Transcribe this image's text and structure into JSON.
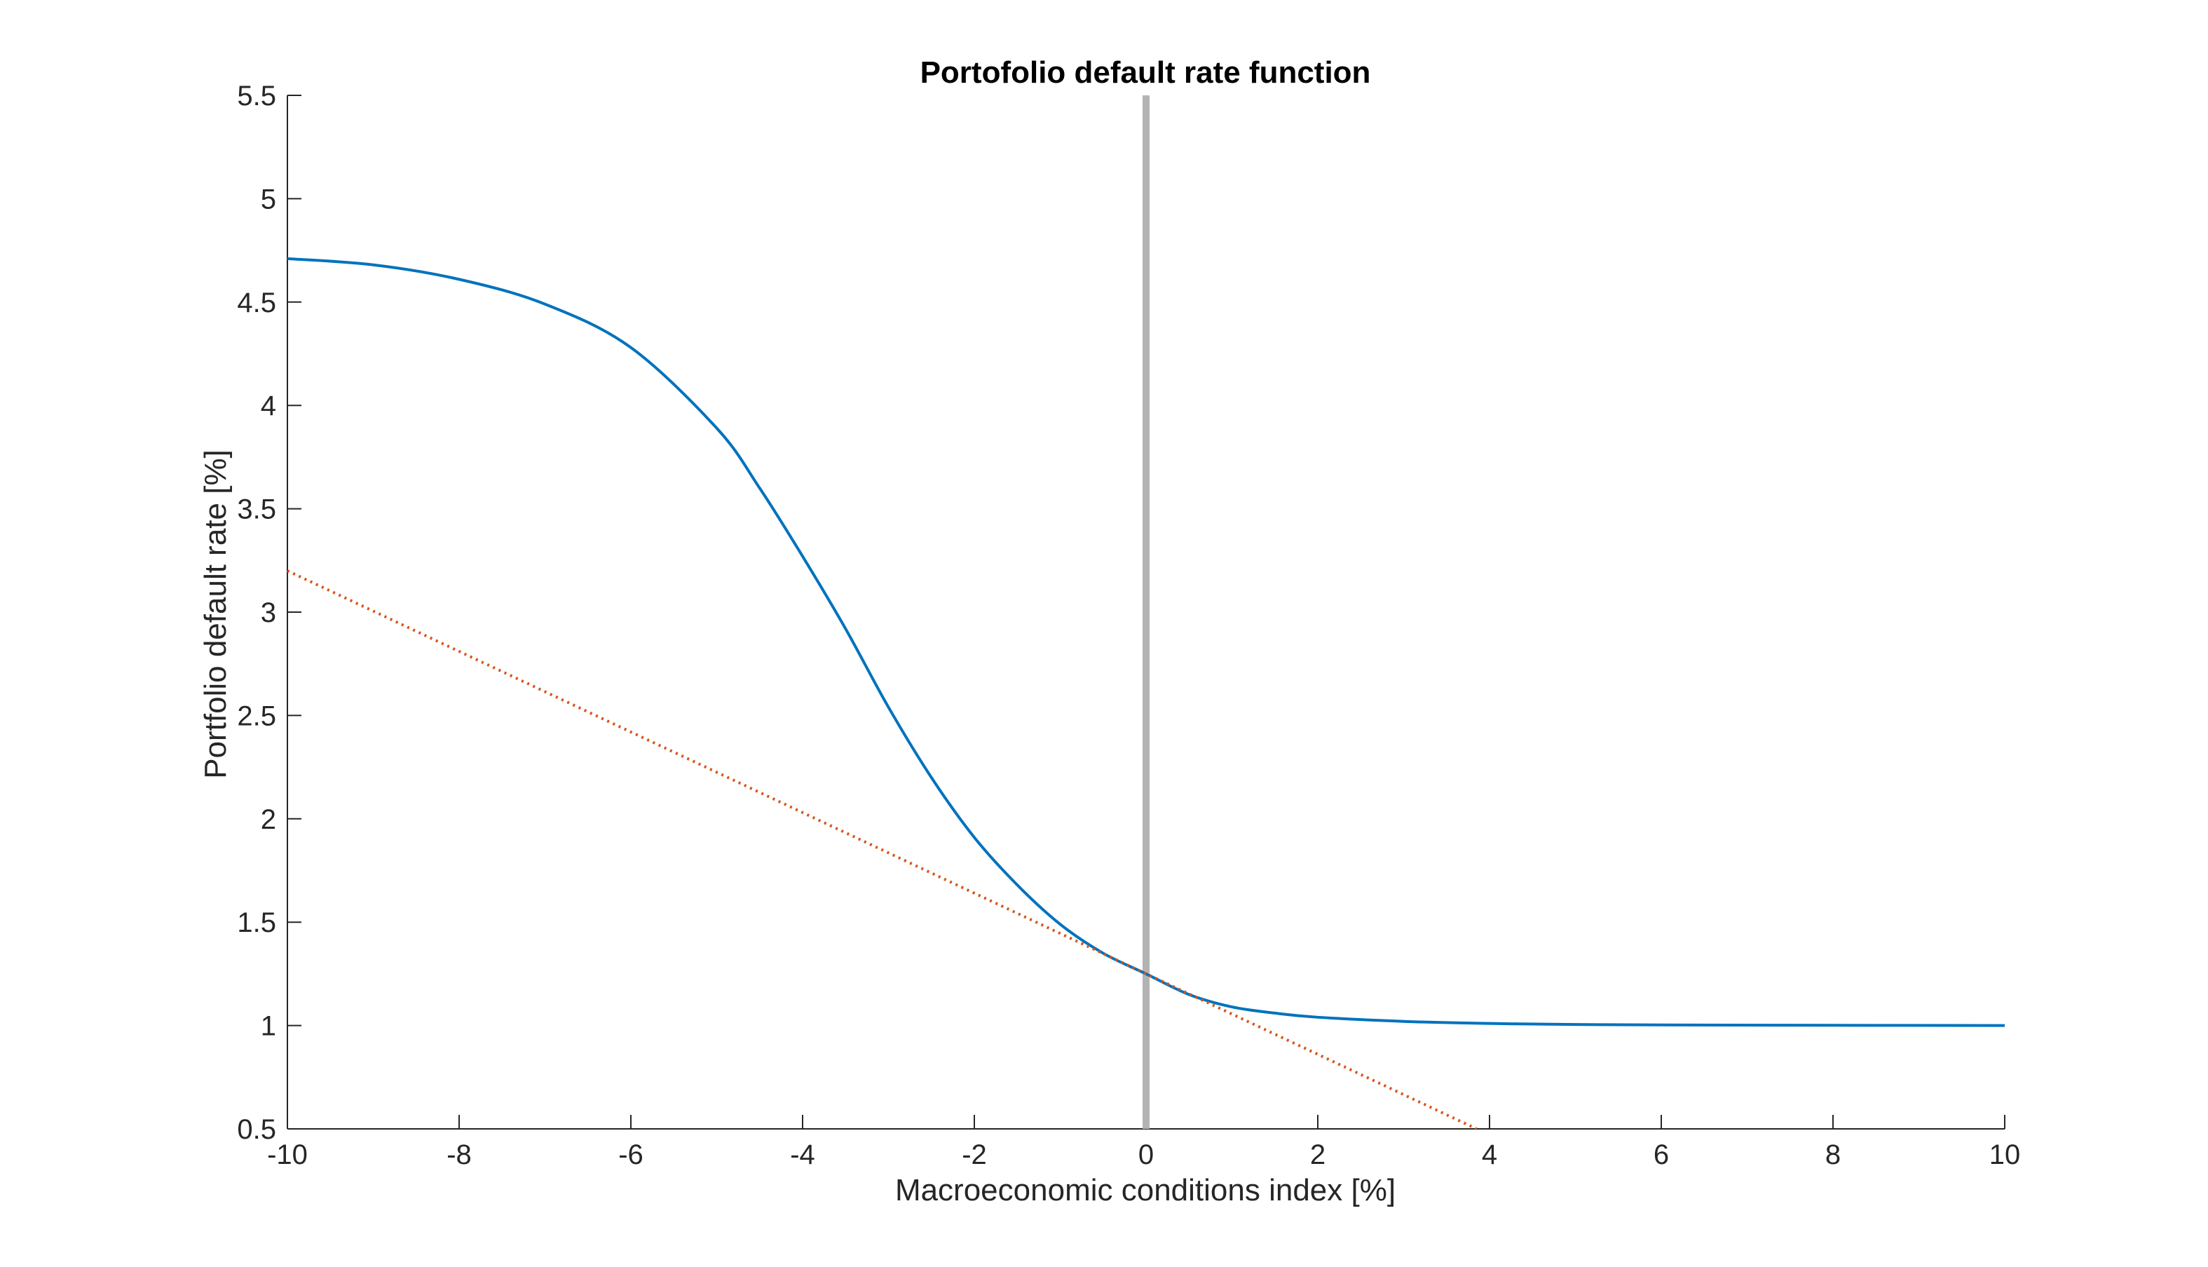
{
  "chart_data": {
    "type": "line",
    "title": "Portofolio default rate function",
    "xlabel": "Macroeconomic conditions index [%]",
    "ylabel": "Portfolio default rate [%]",
    "xlim": [
      -10,
      10
    ],
    "ylim": [
      0.5,
      5.5
    ],
    "xticks": [
      -10,
      -8,
      -6,
      -4,
      -2,
      0,
      2,
      4,
      6,
      8,
      10
    ],
    "yticks": [
      0.5,
      1,
      1.5,
      2,
      2.5,
      3,
      3.5,
      4,
      4.5,
      5,
      5.5
    ],
    "xtick_labels": [
      "-10",
      "-8",
      "-6",
      "-4",
      "-2",
      "0",
      "2",
      "4",
      "6",
      "8",
      "10"
    ],
    "ytick_labels": [
      "0.5",
      "1",
      "1.5",
      "2",
      "2.5",
      "3",
      "3.5",
      "4",
      "4.5",
      "5",
      "5.5"
    ],
    "grid": false,
    "box": "left-bottom axes",
    "series": [
      {
        "style": "solid",
        "color": "#0072BD",
        "x": [
          -10,
          -9,
          -8,
          -7,
          -6,
          -5,
          -4.5,
          -4,
          -3.5,
          -3,
          -2.5,
          -2,
          -1.5,
          -1,
          -0.5,
          0,
          0.5,
          1,
          1.5,
          2,
          3,
          4,
          5,
          6,
          8,
          10
        ],
        "y": [
          4.71,
          4.68,
          4.61,
          4.49,
          4.28,
          3.89,
          3.6,
          3.27,
          2.92,
          2.54,
          2.2,
          1.91,
          1.68,
          1.49,
          1.35,
          1.25,
          1.15,
          1.09,
          1.06,
          1.04,
          1.02,
          1.01,
          1.005,
          1.003,
          1.001,
          1.0
        ]
      },
      {
        "style": "dotted",
        "color": "#D95319",
        "x": [
          -10,
          3.85
        ],
        "y": [
          3.2,
          0.5
        ]
      }
    ],
    "vertical_line": {
      "x": 0,
      "color": "#B3B3B3"
    }
  }
}
